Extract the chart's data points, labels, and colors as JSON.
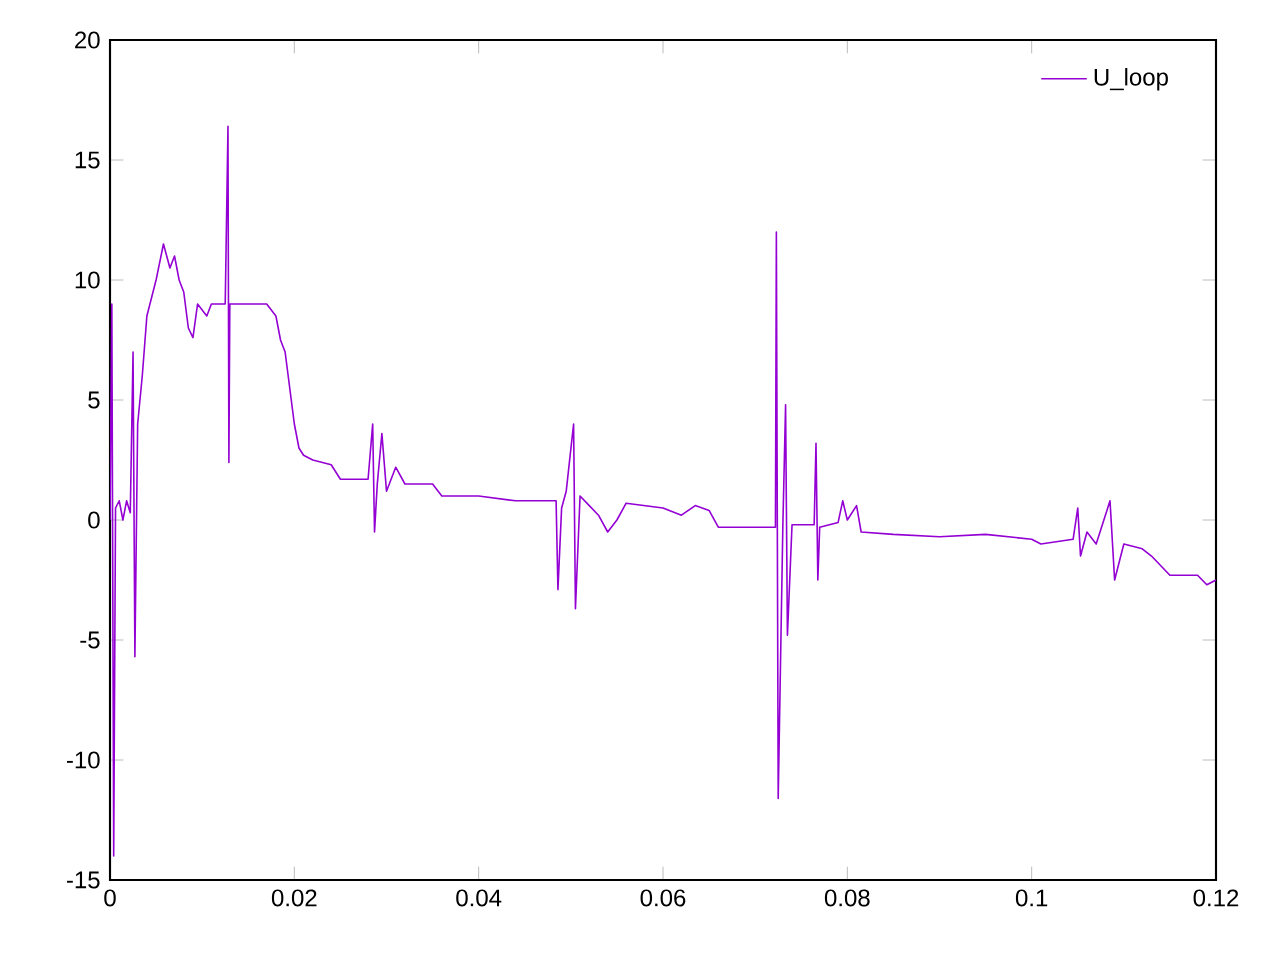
{
  "chart_data": {
    "type": "line",
    "xlim": [
      0,
      0.12
    ],
    "ylim": [
      -15,
      20
    ],
    "xticks": [
      0,
      0.02,
      0.04,
      0.06,
      0.08,
      0.1,
      0.12
    ],
    "yticks": [
      -15,
      -10,
      -5,
      0,
      5,
      10,
      15,
      20
    ],
    "legend": "top right",
    "grid": false,
    "series": [
      {
        "name": "U_loop",
        "color": "#9400d3",
        "x": [
          0,
          0.0002,
          0.0004,
          0.0006,
          0.001,
          0.0014,
          0.0018,
          0.0022,
          0.0025,
          0.0027,
          0.003,
          0.0035,
          0.004,
          0.005,
          0.0058,
          0.0065,
          0.007,
          0.0075,
          0.008,
          0.0085,
          0.009,
          0.0095,
          0.0105,
          0.011,
          0.0125,
          0.0128,
          0.0129,
          0.013,
          0.017,
          0.018,
          0.0185,
          0.019,
          0.0195,
          0.02,
          0.0205,
          0.021,
          0.022,
          0.024,
          0.025,
          0.028,
          0.0285,
          0.0287,
          0.029,
          0.0295,
          0.03,
          0.031,
          0.032,
          0.035,
          0.036,
          0.04,
          0.044,
          0.0484,
          0.0486,
          0.049,
          0.0495,
          0.0503,
          0.0505,
          0.051,
          0.052,
          0.053,
          0.054,
          0.055,
          0.056,
          0.06,
          0.062,
          0.0635,
          0.065,
          0.066,
          0.07,
          0.0722,
          0.0723,
          0.0725,
          0.073,
          0.0733,
          0.0735,
          0.074,
          0.0764,
          0.0766,
          0.0768,
          0.077,
          0.079,
          0.0795,
          0.08,
          0.081,
          0.0815,
          0.085,
          0.09,
          0.095,
          0.1,
          0.101,
          0.1045,
          0.105,
          0.1053,
          0.106,
          0.107,
          0.1085,
          0.109,
          0.11,
          0.112,
          0.113,
          0.115,
          0.118,
          0.119,
          0.12
        ],
        "values": [
          0,
          9,
          -14,
          0.5,
          0.8,
          0,
          0.8,
          0.3,
          7,
          -5.7,
          4,
          6,
          8.5,
          10,
          11.5,
          10.5,
          11,
          10,
          9.5,
          8,
          7.6,
          9,
          8.5,
          9,
          9,
          16.4,
          2.4,
          9,
          9,
          8.5,
          7.5,
          7,
          5.5,
          4,
          3,
          2.7,
          2.5,
          2.3,
          1.7,
          1.7,
          4,
          -0.5,
          1.5,
          3.6,
          1.2,
          2.2,
          1.5,
          1.5,
          1,
          1,
          0.8,
          0.8,
          -2.9,
          0.5,
          1.2,
          4,
          -3.7,
          1,
          0.6,
          0.2,
          -0.5,
          0,
          0.7,
          0.5,
          0.2,
          0.6,
          0.4,
          -0.3,
          -0.3,
          -0.3,
          12,
          -11.6,
          -0.3,
          4.8,
          -4.8,
          -0.2,
          -0.2,
          3.2,
          -2.5,
          -0.3,
          -0.1,
          0.8,
          0,
          0.6,
          -0.5,
          -0.6,
          -0.7,
          -0.6,
          -0.8,
          -1,
          -0.8,
          0.5,
          -1.5,
          -0.5,
          -1,
          0.8,
          -2.5,
          -1,
          -1.2,
          -1.5,
          -2.3,
          -2.3,
          -2.7,
          -2.5
        ]
      }
    ]
  }
}
